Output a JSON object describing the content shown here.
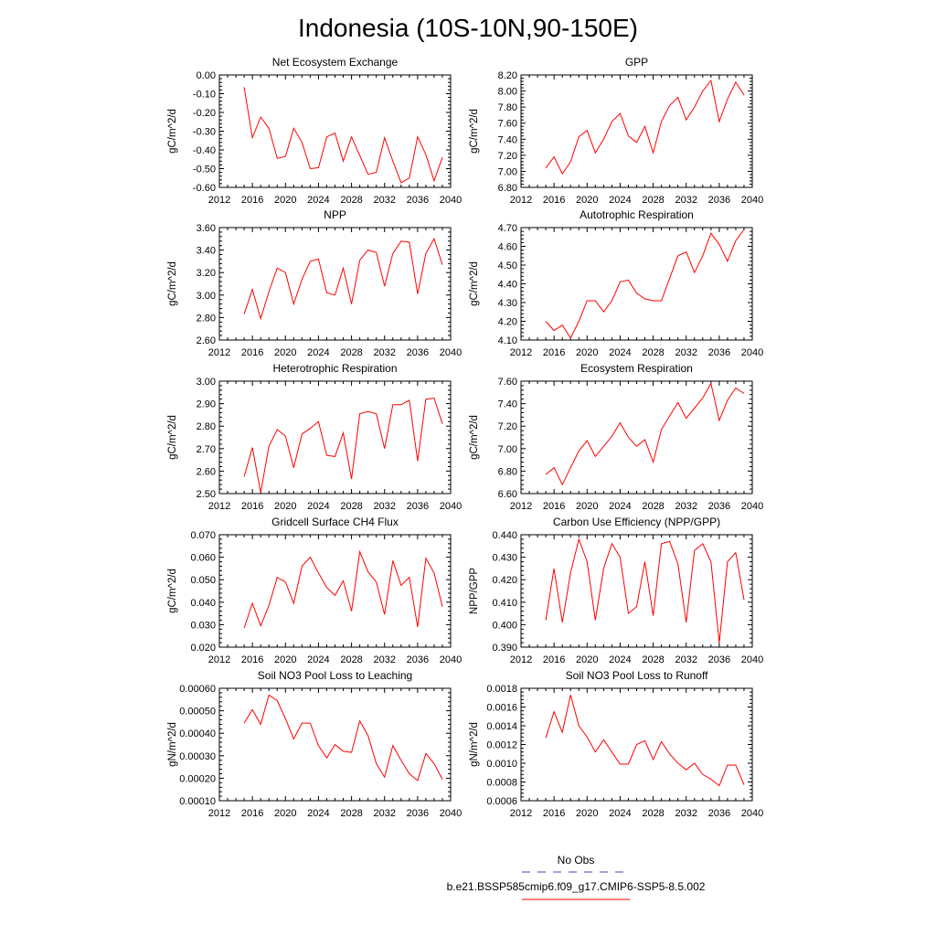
{
  "figure": {
    "title": "Indonesia (10S-10N,90-150E)",
    "line_color": "#ff0000",
    "obs_color": "#4040d0"
  },
  "legend": {
    "obs_label": "No Obs",
    "model_label": "b.e21.BSSP585cmip6.f09_g17.CMIP6-SSP5-8.5.002"
  },
  "chart_data": [
    {
      "type": "line",
      "title": "Net Ecosystem Exchange",
      "ylabel": "gC/m^2/d",
      "xlim": [
        2012,
        2040
      ],
      "xticks": [
        2012,
        2016,
        2020,
        2024,
        2028,
        2032,
        2036,
        2040
      ],
      "ylim": [
        -0.6,
        0.0
      ],
      "yticks": [
        "-0.60",
        "-0.50",
        "-0.40",
        "-0.30",
        "-0.20",
        "-0.10",
        "0.00"
      ],
      "x": [
        2015,
        2016,
        2017,
        2018,
        2019,
        2020,
        2021,
        2022,
        2023,
        2024,
        2025,
        2026,
        2027,
        2028,
        2029,
        2030,
        2031,
        2032,
        2033,
        2034,
        2035,
        2036,
        2037,
        2038,
        2039
      ],
      "series": [
        {
          "values": [
            -0.065,
            -0.335,
            -0.225,
            -0.285,
            -0.445,
            -0.435,
            -0.285,
            -0.36,
            -0.5,
            -0.495,
            -0.33,
            -0.31,
            -0.46,
            -0.33,
            -0.43,
            -0.53,
            -0.52,
            -0.335,
            -0.46,
            -0.575,
            -0.55,
            -0.33,
            -0.425,
            -0.565,
            -0.44
          ]
        }
      ]
    },
    {
      "type": "line",
      "title": "GPP",
      "ylabel": "gC/m^2/d",
      "xlim": [
        2012,
        2040
      ],
      "xticks": [
        2012,
        2016,
        2020,
        2024,
        2028,
        2032,
        2036,
        2040
      ],
      "ylim": [
        6.8,
        8.2
      ],
      "yticks": [
        "6.80",
        "7.00",
        "7.20",
        "7.40",
        "7.60",
        "7.80",
        "8.00",
        "8.20"
      ],
      "x": [
        2015,
        2016,
        2017,
        2018,
        2019,
        2020,
        2021,
        2022,
        2023,
        2024,
        2025,
        2026,
        2027,
        2028,
        2029,
        2030,
        2031,
        2032,
        2033,
        2034,
        2035,
        2036,
        2037,
        2038,
        2039
      ],
      "series": [
        {
          "values": [
            7.04,
            7.18,
            6.97,
            7.12,
            7.43,
            7.51,
            7.23,
            7.4,
            7.62,
            7.72,
            7.44,
            7.36,
            7.56,
            7.23,
            7.62,
            7.82,
            7.92,
            7.64,
            7.8,
            8.0,
            8.13,
            7.62,
            7.9,
            8.11,
            7.95
          ]
        }
      ]
    },
    {
      "type": "line",
      "title": "NPP",
      "ylabel": "gC/m^2/d",
      "xlim": [
        2012,
        2040
      ],
      "xticks": [
        2012,
        2016,
        2020,
        2024,
        2028,
        2032,
        2036,
        2040
      ],
      "ylim": [
        2.6,
        3.6
      ],
      "yticks": [
        "2.60",
        "2.80",
        "3.00",
        "3.20",
        "3.40",
        "3.60"
      ],
      "x": [
        2015,
        2016,
        2017,
        2018,
        2019,
        2020,
        2021,
        2022,
        2023,
        2024,
        2025,
        2026,
        2027,
        2028,
        2029,
        2030,
        2031,
        2032,
        2033,
        2034,
        2035,
        2036,
        2037,
        2038,
        2039
      ],
      "series": [
        {
          "values": [
            2.83,
            3.05,
            2.79,
            3.03,
            3.24,
            3.2,
            2.92,
            3.14,
            3.3,
            3.32,
            3.02,
            3.0,
            3.24,
            2.92,
            3.31,
            3.4,
            3.38,
            3.08,
            3.37,
            3.48,
            3.47,
            3.01,
            3.37,
            3.5,
            3.27
          ]
        }
      ]
    },
    {
      "type": "line",
      "title": "Autotrophic Respiration",
      "ylabel": "gC/m^2/d",
      "xlim": [
        2012,
        2040
      ],
      "xticks": [
        2012,
        2016,
        2020,
        2024,
        2028,
        2032,
        2036,
        2040
      ],
      "ylim": [
        4.1,
        4.7
      ],
      "yticks": [
        "4.10",
        "4.20",
        "4.30",
        "4.40",
        "4.50",
        "4.60",
        "4.70"
      ],
      "x": [
        2015,
        2016,
        2017,
        2018,
        2019,
        2020,
        2021,
        2022,
        2023,
        2024,
        2025,
        2026,
        2027,
        2028,
        2029,
        2030,
        2031,
        2032,
        2033,
        2034,
        2035,
        2036,
        2037,
        2038,
        2039
      ],
      "series": [
        {
          "values": [
            4.2,
            4.15,
            4.18,
            4.11,
            4.2,
            4.31,
            4.31,
            4.25,
            4.31,
            4.41,
            4.42,
            4.35,
            4.32,
            4.31,
            4.31,
            4.43,
            4.55,
            4.57,
            4.46,
            4.55,
            4.67,
            4.61,
            4.52,
            4.63,
            4.69
          ]
        }
      ]
    },
    {
      "type": "line",
      "title": "Heterotrophic Respiration",
      "ylabel": "gC/m^2/d",
      "xlim": [
        2012,
        2040
      ],
      "xticks": [
        2012,
        2016,
        2020,
        2024,
        2028,
        2032,
        2036,
        2040
      ],
      "ylim": [
        2.5,
        3.0
      ],
      "yticks": [
        "2.50",
        "2.60",
        "2.70",
        "2.80",
        "2.90",
        "3.00"
      ],
      "x": [
        2015,
        2016,
        2017,
        2018,
        2019,
        2020,
        2021,
        2022,
        2023,
        2024,
        2025,
        2026,
        2027,
        2028,
        2029,
        2030,
        2031,
        2032,
        2033,
        2034,
        2035,
        2036,
        2037,
        2038,
        2039
      ],
      "series": [
        {
          "values": [
            2.575,
            2.705,
            2.505,
            2.71,
            2.785,
            2.755,
            2.615,
            2.765,
            2.79,
            2.82,
            2.67,
            2.665,
            2.77,
            2.565,
            2.855,
            2.865,
            2.855,
            2.7,
            2.895,
            2.895,
            2.915,
            2.645,
            2.92,
            2.925,
            2.81
          ]
        }
      ]
    },
    {
      "type": "line",
      "title": "Ecosystem Respiration",
      "ylabel": "gC/m^2/d",
      "xlim": [
        2012,
        2040
      ],
      "xticks": [
        2012,
        2016,
        2020,
        2024,
        2028,
        2032,
        2036,
        2040
      ],
      "ylim": [
        6.6,
        7.6
      ],
      "yticks": [
        "6.60",
        "6.80",
        "7.00",
        "7.20",
        "7.40",
        "7.60"
      ],
      "x": [
        2015,
        2016,
        2017,
        2018,
        2019,
        2020,
        2021,
        2022,
        2023,
        2024,
        2025,
        2026,
        2027,
        2028,
        2029,
        2030,
        2031,
        2032,
        2033,
        2034,
        2035,
        2036,
        2037,
        2038,
        2039
      ],
      "series": [
        {
          "values": [
            6.77,
            6.83,
            6.68,
            6.83,
            6.98,
            7.07,
            6.93,
            7.02,
            7.11,
            7.23,
            7.1,
            7.02,
            7.08,
            6.88,
            7.17,
            7.29,
            7.41,
            7.27,
            7.36,
            7.45,
            7.58,
            7.25,
            7.43,
            7.54,
            7.49
          ]
        }
      ]
    },
    {
      "type": "line",
      "title": "Gridcell Surface CH4 Flux",
      "ylabel": "gC/m^2/d",
      "xlim": [
        2012,
        2040
      ],
      "xticks": [
        2012,
        2016,
        2020,
        2024,
        2028,
        2032,
        2036,
        2040
      ],
      "ylim": [
        0.02,
        0.07
      ],
      "yticks": [
        "0.020",
        "0.030",
        "0.040",
        "0.050",
        "0.060",
        "0.070"
      ],
      "x": [
        2015,
        2016,
        2017,
        2018,
        2019,
        2020,
        2021,
        2022,
        2023,
        2024,
        2025,
        2026,
        2027,
        2028,
        2029,
        2030,
        2031,
        2032,
        2033,
        2034,
        2035,
        2036,
        2037,
        2038,
        2039
      ],
      "series": [
        {
          "values": [
            0.0285,
            0.0395,
            0.0295,
            0.0385,
            0.051,
            0.049,
            0.0395,
            0.056,
            0.06,
            0.053,
            0.0465,
            0.043,
            0.0495,
            0.036,
            0.0625,
            0.0535,
            0.049,
            0.0345,
            0.0585,
            0.0475,
            0.051,
            0.029,
            0.0595,
            0.053,
            0.038
          ]
        }
      ]
    },
    {
      "type": "line",
      "title": "Carbon Use Efficiency (NPP/GPP)",
      "ylabel": "NPP/GPP",
      "xlim": [
        2012,
        2040
      ],
      "xticks": [
        2012,
        2016,
        2020,
        2024,
        2028,
        2032,
        2036,
        2040
      ],
      "ylim": [
        0.39,
        0.44
      ],
      "yticks": [
        "0.390",
        "0.400",
        "0.410",
        "0.420",
        "0.430",
        "0.440"
      ],
      "x": [
        2015,
        2016,
        2017,
        2018,
        2019,
        2020,
        2021,
        2022,
        2023,
        2024,
        2025,
        2026,
        2027,
        2028,
        2029,
        2030,
        2031,
        2032,
        2033,
        2034,
        2035,
        2036,
        2037,
        2038,
        2039
      ],
      "series": [
        {
          "values": [
            0.402,
            0.425,
            0.401,
            0.423,
            0.438,
            0.428,
            0.402,
            0.425,
            0.436,
            0.43,
            0.405,
            0.408,
            0.428,
            0.404,
            0.436,
            0.437,
            0.427,
            0.401,
            0.433,
            0.436,
            0.428,
            0.392,
            0.428,
            0.432,
            0.411
          ]
        }
      ]
    },
    {
      "type": "line",
      "title": "Soil NO3 Pool Loss to Leaching",
      "ylabel": "gN/m^2/d",
      "xlim": [
        2012,
        2040
      ],
      "xticks": [
        2012,
        2016,
        2020,
        2024,
        2028,
        2032,
        2036,
        2040
      ],
      "ylim": [
        0.0001,
        0.0006
      ],
      "yticks": [
        "0.00010",
        "0.00020",
        "0.00030",
        "0.00040",
        "0.00050",
        "0.00060"
      ],
      "x": [
        2015,
        2016,
        2017,
        2018,
        2019,
        2020,
        2021,
        2022,
        2023,
        2024,
        2025,
        2026,
        2027,
        2028,
        2029,
        2030,
        2031,
        2032,
        2033,
        2034,
        2035,
        2036,
        2037,
        2038,
        2039
      ],
      "series": [
        {
          "values": [
            0.000445,
            0.000505,
            0.00044,
            0.00057,
            0.000545,
            0.000465,
            0.000375,
            0.000445,
            0.000445,
            0.000345,
            0.00029,
            0.00035,
            0.00032,
            0.000315,
            0.000455,
            0.00039,
            0.000265,
            0.000205,
            0.000345,
            0.00028,
            0.00022,
            0.00019,
            0.00031,
            0.000265,
            0.000195
          ]
        }
      ]
    },
    {
      "type": "line",
      "title": "Soil NO3 Pool Loss to Runoff",
      "ylabel": "gN/m^2/d",
      "xlim": [
        2012,
        2040
      ],
      "xticks": [
        2012,
        2016,
        2020,
        2024,
        2028,
        2032,
        2036,
        2040
      ],
      "ylim": [
        0.0006,
        0.0018
      ],
      "yticks": [
        "0.0006",
        "0.0008",
        "0.0010",
        "0.0012",
        "0.0014",
        "0.0016",
        "0.0018"
      ],
      "x": [
        2015,
        2016,
        2017,
        2018,
        2019,
        2020,
        2021,
        2022,
        2023,
        2024,
        2025,
        2026,
        2027,
        2028,
        2029,
        2030,
        2031,
        2032,
        2033,
        2034,
        2035,
        2036,
        2037,
        2038,
        2039
      ],
      "series": [
        {
          "values": [
            0.00127,
            0.00155,
            0.00133,
            0.00173,
            0.0014,
            0.00128,
            0.00112,
            0.00125,
            0.00112,
            0.00099,
            0.00099,
            0.0012,
            0.00124,
            0.00104,
            0.00123,
            0.0011,
            0.001,
            0.00093,
            0.001,
            0.00088,
            0.00083,
            0.00076,
            0.00098,
            0.00098,
            0.00077
          ]
        }
      ]
    }
  ]
}
